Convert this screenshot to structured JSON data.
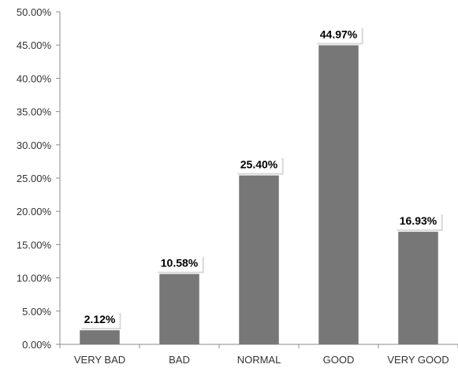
{
  "chart_data": {
    "type": "bar",
    "categories": [
      "VERY BAD",
      "BAD",
      "NORMAL",
      "GOOD",
      "VERY GOOD"
    ],
    "values": [
      2.12,
      10.58,
      25.4,
      44.97,
      16.93
    ],
    "data_labels": [
      "2.12%",
      "10.58%",
      "25.40%",
      "44.97%",
      "16.93%"
    ],
    "ylim": [
      0,
      50
    ],
    "yticks": [
      0,
      5,
      10,
      15,
      20,
      25,
      30,
      35,
      40,
      45,
      50
    ],
    "ytick_labels": [
      "0.00%",
      "5.00%",
      "10.00%",
      "15.00%",
      "20.00%",
      "25.00%",
      "30.00%",
      "35.00%",
      "40.00%",
      "45.00%",
      "50.00%"
    ],
    "title": "",
    "xlabel": "",
    "ylabel": "",
    "grid": false,
    "legend": "none",
    "bar_color": "#777777",
    "axis_color": "#8c8c8c"
  }
}
